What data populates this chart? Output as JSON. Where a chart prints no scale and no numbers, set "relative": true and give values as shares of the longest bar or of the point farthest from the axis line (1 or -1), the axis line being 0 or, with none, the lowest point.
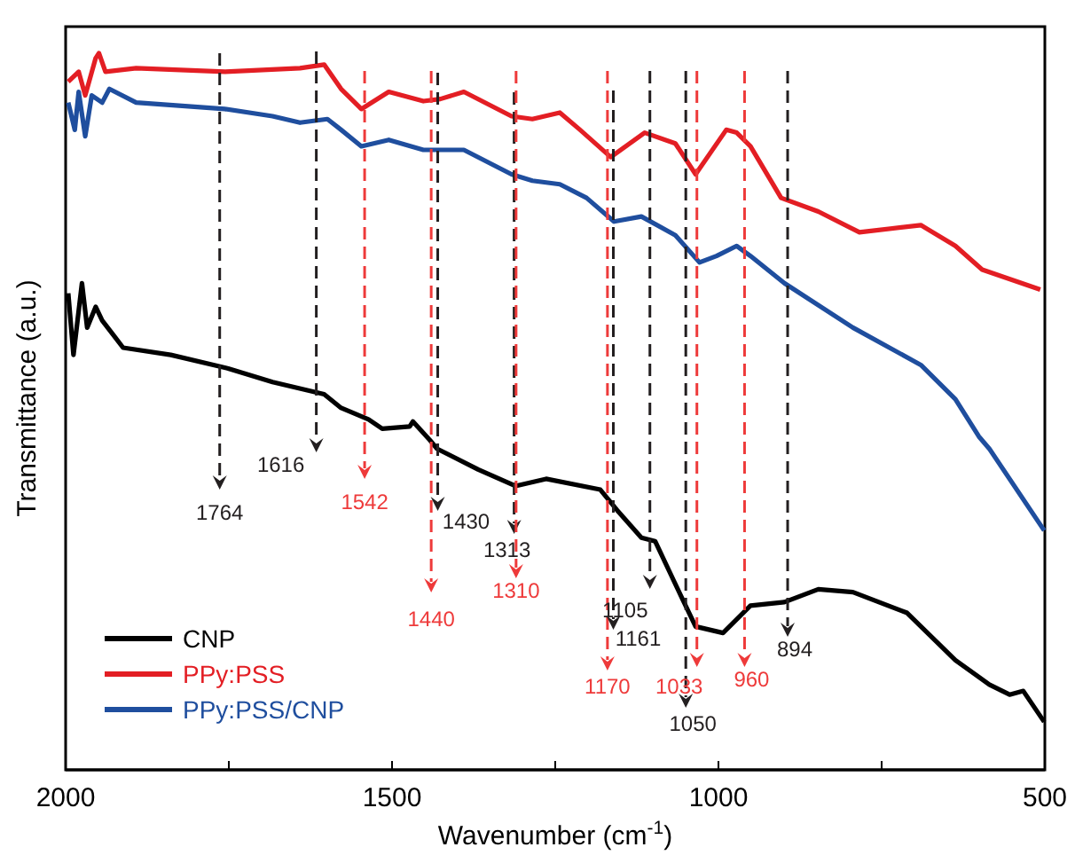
{
  "chart_data": {
    "type": "line",
    "relative": true,
    "xlabel": "Wavenumber (cm$^{-1}$)",
    "ylabel": "Transmittance (a.u.)",
    "xlim": [
      2000,
      500
    ],
    "xticks": [
      2000,
      {
        "value": 1750,
        "label": null
      },
      1500,
      {
        "value": 1250,
        "label": null
      },
      1000,
      {
        "value": 750,
        "label": null
      },
      500
    ],
    "legend": "bottom left",
    "line_style": "solid",
    "series": [
      {
        "name": "CNP",
        "color": "#000000",
        "x": [
          1996,
          1988,
          1975,
          1967,
          1954,
          1944,
          1928,
          1912,
          1839,
          1751,
          1683,
          1604,
          1578,
          1536,
          1515,
          1473,
          1468,
          1442,
          1431,
          1368,
          1311,
          1264,
          1181,
          1155,
          1118,
          1097,
          1055,
          1035,
          993,
          951,
          899,
          847,
          794,
          711,
          637,
          585,
          554,
          533,
          501
        ],
        "values": [
          0.665,
          0.579,
          0.679,
          0.617,
          0.646,
          0.627,
          0.608,
          0.589,
          0.579,
          0.56,
          0.541,
          0.524,
          0.505,
          0.489,
          0.476,
          0.479,
          0.486,
          0.46,
          0.448,
          0.419,
          0.396,
          0.406,
          0.391,
          0.362,
          0.324,
          0.319,
          0.238,
          0.2,
          0.191,
          0.229,
          0.234,
          0.252,
          0.248,
          0.219,
          0.153,
          0.119,
          0.105,
          0.11,
          0.067
        ]
      },
      {
        "name": "PPy:PSS",
        "color": "#e31e24",
        "x": [
          1996,
          1980,
          1970,
          1954,
          1949,
          1939,
          1892,
          1756,
          1641,
          1604,
          1578,
          1547,
          1505,
          1452,
          1426,
          1390,
          1317,
          1285,
          1243,
          1212,
          1165,
          1113,
          1066,
          1035,
          988,
          972,
          951,
          904,
          847,
          784,
          690,
          637,
          596,
          507
        ],
        "values": [
          0.96,
          0.974,
          0.941,
          0.993,
          1,
          0.974,
          0.979,
          0.974,
          0.979,
          0.984,
          0.95,
          0.922,
          0.946,
          0.933,
          0.936,
          0.946,
          0.912,
          0.908,
          0.917,
          0.893,
          0.855,
          0.889,
          0.874,
          0.831,
          0.893,
          0.889,
          0.87,
          0.798,
          0.779,
          0.75,
          0.76,
          0.731,
          0.698,
          0.67
        ]
      },
      {
        "name": "PPy:PSS/CNP",
        "color": "#1f4e9e",
        "x": [
          1996,
          1986,
          1980,
          1970,
          1960,
          1944,
          1933,
          1892,
          1756,
          1683,
          1641,
          1599,
          1578,
          1547,
          1505,
          1452,
          1390,
          1317,
          1285,
          1243,
          1202,
          1160,
          1118,
          1066,
          1029,
          1003,
          972,
          951,
          899,
          794,
          690,
          637,
          601,
          585,
          501
        ],
        "values": [
          0.931,
          0.893,
          0.946,
          0.884,
          0.941,
          0.931,
          0.95,
          0.931,
          0.922,
          0.912,
          0.903,
          0.908,
          0.893,
          0.87,
          0.879,
          0.865,
          0.865,
          0.831,
          0.822,
          0.817,
          0.798,
          0.765,
          0.772,
          0.746,
          0.708,
          0.717,
          0.731,
          0.717,
          0.679,
          0.617,
          0.565,
          0.517,
          0.465,
          0.448,
          0.334
        ]
      }
    ],
    "ref_lines": [
      {
        "axis": "x",
        "value": 1764,
        "label": "1764",
        "color": "#231f20",
        "line_style": "dashed"
      },
      {
        "axis": "x",
        "value": 1616,
        "label": "1616",
        "color": "#231f20",
        "line_style": "dashed"
      },
      {
        "axis": "x",
        "value": 1542,
        "label": "1542",
        "color": "#ee3a3a",
        "line_style": "dashed"
      },
      {
        "axis": "x",
        "value": 1440,
        "label": "1440",
        "color": "#ee3a3a",
        "line_style": "dashed"
      },
      {
        "axis": "x",
        "value": 1430,
        "label": "1430",
        "color": "#231f20",
        "line_style": "dashed"
      },
      {
        "axis": "x",
        "value": 1313,
        "label": "1313",
        "color": "#231f20",
        "line_style": "dashed"
      },
      {
        "axis": "x",
        "value": 1310,
        "label": "1310",
        "color": "#ee3a3a",
        "line_style": "dashed"
      },
      {
        "axis": "x",
        "value": 1170,
        "label": "1170",
        "color": "#ee3a3a",
        "line_style": "dashed"
      },
      {
        "axis": "x",
        "value": 1161,
        "label": "1161",
        "color": "#231f20",
        "line_style": "dashed"
      },
      {
        "axis": "x",
        "value": 1105,
        "label": "1105",
        "color": "#231f20",
        "line_style": "dashed"
      },
      {
        "axis": "x",
        "value": 1050,
        "label": "1050",
        "color": "#231f20",
        "line_style": "dashed"
      },
      {
        "axis": "x",
        "value": 1033,
        "label": "1033",
        "color": "#ee3a3a",
        "line_style": "dashed"
      },
      {
        "axis": "x",
        "value": 960,
        "label": "960",
        "color": "#ee3a3a",
        "line_style": "dashed"
      },
      {
        "axis": "x",
        "value": 894,
        "label": "894",
        "color": "#231f20",
        "line_style": "dashed"
      }
    ]
  }
}
